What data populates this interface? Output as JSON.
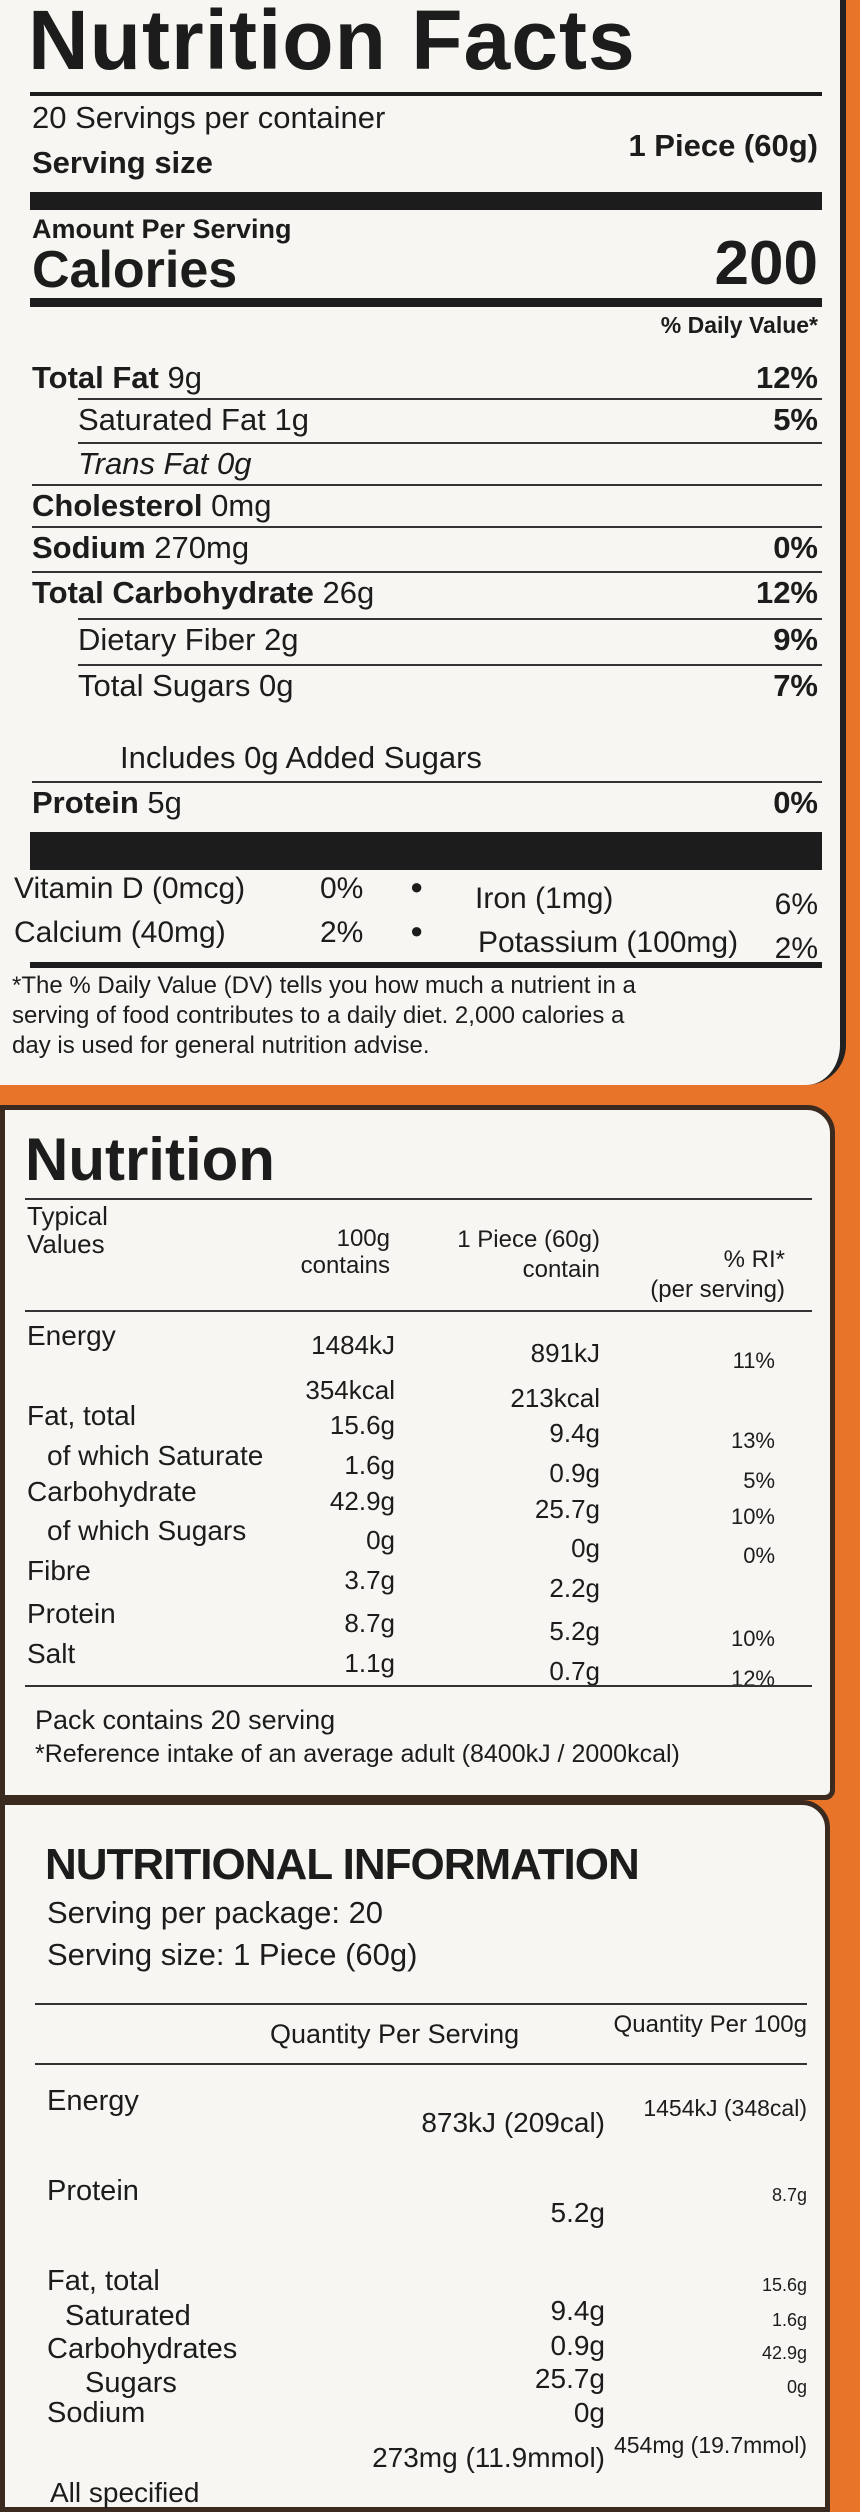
{
  "nutrition_facts": {
    "title": "Nutrition Facts",
    "servings_per_container": "20 Servings per container",
    "serving_size_label": "Serving size",
    "serving_size_value": "1 Piece (60g)",
    "amount_per_serving": "Amount Per Serving",
    "calories_label": "Calories",
    "calories_value": "200",
    "daily_value_header": "% Daily Value*",
    "rows": [
      {
        "label": "Total Fat",
        "amount": "9g",
        "dv": "12%",
        "bold": true,
        "indent": 0
      },
      {
        "label": "Saturated Fat",
        "amount": "1g",
        "dv": "5%",
        "bold": false,
        "indent": 1
      },
      {
        "label": "Trans Fat",
        "amount": "0g",
        "dv": "",
        "bold": false,
        "indent": 1,
        "italic": true
      },
      {
        "label": "Cholesterol",
        "amount": "0mg",
        "dv": "",
        "bold": true,
        "indent": 0
      },
      {
        "label": "Sodium",
        "amount": "270mg",
        "dv": "0%",
        "bold": true,
        "indent": 0
      },
      {
        "label": "Total Carbohydrate",
        "amount": "26g",
        "dv": "12%",
        "bold": true,
        "indent": 0
      },
      {
        "label": "Dietary Fiber",
        "amount": "2g",
        "dv": "9%",
        "bold": false,
        "indent": 1
      },
      {
        "label": "Total Sugars",
        "amount": "0g",
        "dv": "7%",
        "bold": false,
        "indent": 1
      },
      {
        "label": "Includes 0g Added Sugars",
        "amount": "",
        "dv": "",
        "bold": false,
        "indent": 2
      },
      {
        "label": "Protein",
        "amount": "5g",
        "dv": "0%",
        "bold": true,
        "indent": 0
      }
    ],
    "vitamins": [
      {
        "left": "Vitamin D (0mcg)",
        "left_pct": "0%",
        "right": "Iron (1mg)",
        "right_pct": "6%"
      },
      {
        "left": "Calcium (40mg)",
        "left_pct": "2%",
        "right": "Potassium (100mg)",
        "right_pct": "2%"
      }
    ],
    "footnote": [
      "*The % Daily Value (DV) tells you how much a nutrient in a",
      "serving of food contributes to a daily diet. 2,000 calories a",
      "day is used for general nutrition advise."
    ]
  },
  "nutrition_eu": {
    "title": "Nutrition",
    "headers": {
      "c1a": "Typical",
      "c1b": "Values",
      "c2a": "100g",
      "c2b": "contains",
      "c3a": "1 Piece (60g)",
      "c3b": "contain",
      "c4a": "% RI*",
      "c4b": "(per serving)"
    },
    "rows": [
      {
        "label": "Energy",
        "per100": "1484kJ",
        "perPiece": "891kJ",
        "ri": "11%",
        "indent": false
      },
      {
        "label": "",
        "per100": "354kcal",
        "perPiece": "213kcal",
        "ri": "",
        "indent": false
      },
      {
        "label": "Fat, total",
        "per100": "15.6g",
        "perPiece": "9.4g",
        "ri": "13%",
        "indent": false
      },
      {
        "label": "of which Saturate",
        "per100": "1.6g",
        "perPiece": "0.9g",
        "ri": "5%",
        "indent": true
      },
      {
        "label": "Carbohydrate",
        "per100": "42.9g",
        "perPiece": "25.7g",
        "ri": "10%",
        "indent": false
      },
      {
        "label": "of which Sugars",
        "per100": "0g",
        "perPiece": "0g",
        "ri": "0%",
        "indent": true
      },
      {
        "label": "Fibre",
        "per100": "3.7g",
        "perPiece": "2.2g",
        "ri": "",
        "indent": false
      },
      {
        "label": "Protein",
        "per100": "8.7g",
        "perPiece": "5.2g",
        "ri": "10%",
        "indent": false
      },
      {
        "label": "Salt",
        "per100": "1.1g",
        "perPiece": "0.7g",
        "ri": "12%",
        "indent": false
      }
    ],
    "pack_contains": "Pack contains 20 serving",
    "reference": "*Reference intake of an average adult (8400kJ / 2000kcal)"
  },
  "nutritional_information": {
    "title": "NUTRITIONAL INFORMATION",
    "servings_per_package": "Serving per package: 20",
    "serving_size": "Serving size: 1 Piece (60g)",
    "col_per_serving": "Quantity Per Serving",
    "col_per_100g": "Quantity Per 100g",
    "rows": [
      {
        "label": "Energy",
        "serving": "873kJ (209cal)",
        "per100": "1454kJ (348cal)",
        "indent": false
      },
      {
        "label": "Protein",
        "serving": "5.2g",
        "per100": "8.7g",
        "indent": false
      },
      {
        "label": "Fat, total",
        "serving": "9.4g",
        "per100": "15.6g",
        "indent": false
      },
      {
        "label": "Saturated",
        "serving": "0.9g",
        "per100": "1.6g",
        "indent": true
      },
      {
        "label": "Carbohydrates",
        "serving": "25.7g",
        "per100": "42.9g",
        "indent": false
      },
      {
        "label": "Sugars",
        "serving": "0g",
        "per100": "0g",
        "indent": true
      },
      {
        "label": "Sodium",
        "serving": "273mg (11.9mmol)",
        "per100": "454mg (19.7mmol)",
        "indent": false
      }
    ],
    "footer": "All specified"
  },
  "colors": {
    "background_orange": "#e8742a",
    "label_white": "#f7f6f2",
    "ink": "#1c1c1c"
  }
}
